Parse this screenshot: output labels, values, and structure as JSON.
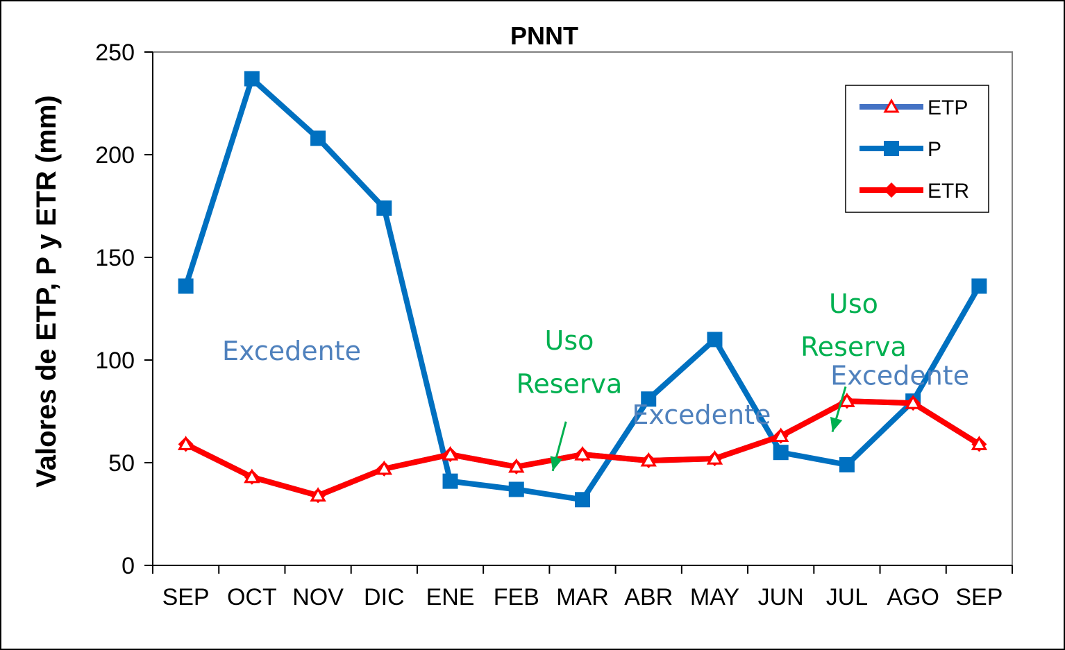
{
  "chart_data": {
    "type": "line",
    "title": "PNNT",
    "xlabel": "",
    "ylabel": "Valores de ETP, P y ETR (mm)",
    "ylim": [
      0,
      250
    ],
    "yticks": [
      0,
      50,
      100,
      150,
      200,
      250
    ],
    "grid": false,
    "legend_position": "top-right",
    "categories": [
      "SEP",
      "OCT",
      "NOV",
      "DIC",
      "ENE",
      "FEB",
      "MAR",
      "ABR",
      "MAY",
      "JUN",
      "JUL",
      "AGO",
      "SEP"
    ],
    "series": [
      {
        "name": "ETP",
        "color": "#4472C4",
        "marker": "triangle-open",
        "marker_color": "#FF0000",
        "values": [
          59,
          43,
          34,
          47,
          54,
          48,
          54,
          51,
          52,
          63,
          80,
          79,
          59
        ]
      },
      {
        "name": "P",
        "color": "#0070C0",
        "marker": "square",
        "values": [
          136,
          237,
          208,
          174,
          41,
          37,
          32,
          81,
          110,
          55,
          49,
          80,
          136
        ]
      },
      {
        "name": "ETR",
        "color": "#FF0000",
        "marker": "diamond",
        "values": [
          59,
          43,
          34,
          47,
          54,
          48,
          54,
          51,
          52,
          63,
          80,
          79,
          59
        ]
      }
    ],
    "annotations": [
      {
        "text": "Excedente",
        "color": "#4F81BD",
        "x_category": 1.6,
        "y": 100
      },
      {
        "text": "Uso",
        "color": "#00B050",
        "x_category": 5.8,
        "y": 105
      },
      {
        "text": "Reserva",
        "color": "#00B050",
        "x_category": 5.8,
        "y": 84
      },
      {
        "text": "Excedente",
        "color": "#4F81BD",
        "x_category": 7.8,
        "y": 69
      },
      {
        "text": "Uso",
        "color": "#00B050",
        "x_category": 10.1,
        "y": 123
      },
      {
        "text": "Reserva",
        "color": "#00B050",
        "x_category": 10.1,
        "y": 102
      },
      {
        "text": "Excedente",
        "color": "#4F81BD",
        "x_category": 10.8,
        "y": 88
      }
    ],
    "arrows": [
      {
        "color": "#00B050",
        "from": [
          5.75,
          70
        ],
        "to": [
          5.55,
          46
        ]
      },
      {
        "color": "#00B050",
        "from": [
          9.98,
          87
        ],
        "to": [
          9.78,
          65
        ]
      }
    ]
  }
}
